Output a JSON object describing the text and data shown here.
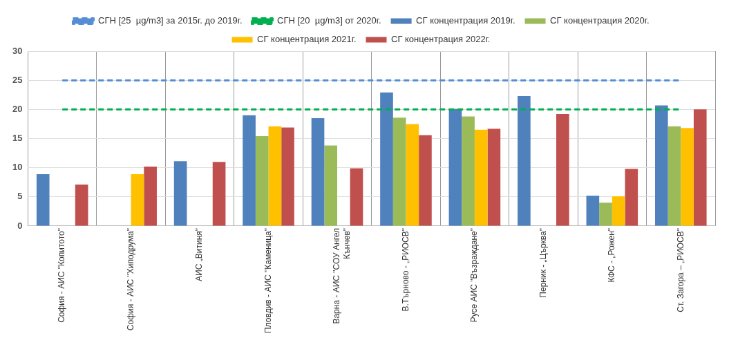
{
  "chart_data": {
    "type": "bar",
    "categories": [
      "София - АИС \"Копитото\"",
      "София - АИС \"Хиподрума\"",
      "АИС „Витиня\"",
      "Пловдив - АИС \"Каменица\"",
      "Варна - АИС \"СОУ Ангел Кънчев\"",
      "В.Търново - „РИОСВ\"",
      "Русе АИС \"Възраждане\"",
      "Перник - „Църква\"",
      "КФС - „Рожен\"",
      "Ст. Загора – „РИОСВ\""
    ],
    "series": [
      {
        "name": "СГ концентрация 2019г.",
        "color": "#4f81bd",
        "values": [
          8.9,
          null,
          11.1,
          19.0,
          18.5,
          22.9,
          20.1,
          22.3,
          5.2,
          20.7
        ]
      },
      {
        "name": "СГ концентрация 2020г.",
        "color": "#9bbb59",
        "values": [
          null,
          null,
          null,
          15.4,
          13.8,
          18.6,
          18.8,
          null,
          4.0,
          17.1
        ]
      },
      {
        "name": "СГ концентрация 2021г.",
        "color": "#ffc000",
        "values": [
          null,
          8.9,
          null,
          17.1,
          null,
          17.5,
          16.5,
          null,
          5.1,
          16.8
        ]
      },
      {
        "name": "СГ концентрация 2022г.",
        "color": "#c0504d",
        "values": [
          7.1,
          10.2,
          11.0,
          16.9,
          9.9,
          15.6,
          16.7,
          19.2,
          9.8,
          20.0
        ]
      },
      {
        "name": "СГН [25  µg/m3] за 2015г. до 2019г.",
        "type": "line",
        "line_style": "dashed",
        "color": "#558ed5",
        "values": [
          25,
          25,
          25,
          25,
          25,
          25,
          25,
          25,
          25,
          25
        ]
      },
      {
        "name": "СГН [20  µg/m3] от 2020г.",
        "type": "line",
        "line_style": "dashed",
        "color": "#00b050",
        "values": [
          20,
          20,
          20,
          20,
          20,
          20,
          20,
          20,
          20,
          20
        ]
      }
    ],
    "ylim": [
      0,
      30
    ],
    "yticks": [
      0,
      5,
      10,
      15,
      20,
      25,
      30
    ],
    "grid": true,
    "legend": "top",
    "marker": "none"
  }
}
